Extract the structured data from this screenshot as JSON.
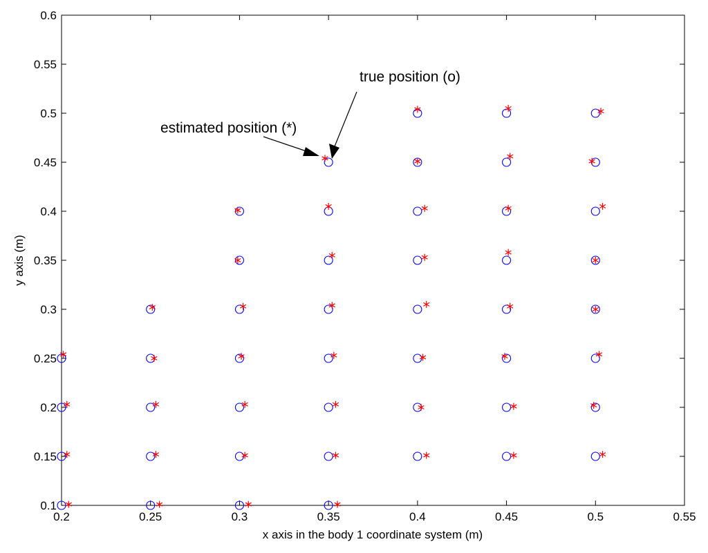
{
  "chart_data": {
    "type": "scatter",
    "title": "",
    "xlabel": "x axis in the body 1 coordinate system (m)",
    "ylabel": "y axis (m)",
    "xlim": [
      0.2,
      0.55
    ],
    "ylim": [
      0.1,
      0.6
    ],
    "xticks": [
      "0.2",
      "0.25",
      "0.3",
      "0.35",
      "0.4",
      "0.45",
      "0.5",
      "0.55"
    ],
    "yticks": [
      "0.1",
      "0.15",
      "0.2",
      "0.25",
      "0.3",
      "0.35",
      "0.4",
      "0.45",
      "0.5",
      "0.55",
      "0.6"
    ],
    "grid": false,
    "series": [
      {
        "marker": "circle",
        "color": "#0000ff",
        "points": [
          [
            0.2,
            0.1
          ],
          [
            0.2,
            0.15
          ],
          [
            0.2,
            0.2
          ],
          [
            0.2,
            0.25
          ],
          [
            0.25,
            0.1
          ],
          [
            0.25,
            0.15
          ],
          [
            0.25,
            0.2
          ],
          [
            0.25,
            0.25
          ],
          [
            0.25,
            0.3
          ],
          [
            0.3,
            0.1
          ],
          [
            0.3,
            0.15
          ],
          [
            0.3,
            0.2
          ],
          [
            0.3,
            0.25
          ],
          [
            0.3,
            0.3
          ],
          [
            0.3,
            0.35
          ],
          [
            0.3,
            0.4
          ],
          [
            0.35,
            0.1
          ],
          [
            0.35,
            0.15
          ],
          [
            0.35,
            0.2
          ],
          [
            0.35,
            0.25
          ],
          [
            0.35,
            0.3
          ],
          [
            0.35,
            0.35
          ],
          [
            0.35,
            0.4
          ],
          [
            0.35,
            0.45
          ],
          [
            0.4,
            0.15
          ],
          [
            0.4,
            0.2
          ],
          [
            0.4,
            0.25
          ],
          [
            0.4,
            0.3
          ],
          [
            0.4,
            0.35
          ],
          [
            0.4,
            0.4
          ],
          [
            0.4,
            0.45
          ],
          [
            0.4,
            0.5
          ],
          [
            0.45,
            0.15
          ],
          [
            0.45,
            0.2
          ],
          [
            0.45,
            0.25
          ],
          [
            0.45,
            0.3
          ],
          [
            0.45,
            0.35
          ],
          [
            0.45,
            0.4
          ],
          [
            0.45,
            0.45
          ],
          [
            0.45,
            0.5
          ],
          [
            0.5,
            0.15
          ],
          [
            0.5,
            0.2
          ],
          [
            0.5,
            0.25
          ],
          [
            0.5,
            0.3
          ],
          [
            0.5,
            0.35
          ],
          [
            0.5,
            0.4
          ],
          [
            0.5,
            0.45
          ],
          [
            0.5,
            0.5
          ]
        ]
      },
      {
        "marker": "asterisk",
        "color": "#ff0000",
        "points": [
          [
            0.204,
            0.101
          ],
          [
            0.203,
            0.152
          ],
          [
            0.203,
            0.203
          ],
          [
            0.201,
            0.254
          ],
          [
            0.255,
            0.101
          ],
          [
            0.253,
            0.152
          ],
          [
            0.253,
            0.203
          ],
          [
            0.252,
            0.25
          ],
          [
            0.251,
            0.302
          ],
          [
            0.305,
            0.101
          ],
          [
            0.303,
            0.151
          ],
          [
            0.303,
            0.203
          ],
          [
            0.301,
            0.252
          ],
          [
            0.302,
            0.303
          ],
          [
            0.299,
            0.35
          ],
          [
            0.299,
            0.401
          ],
          [
            0.355,
            0.101
          ],
          [
            0.354,
            0.151
          ],
          [
            0.354,
            0.203
          ],
          [
            0.353,
            0.253
          ],
          [
            0.352,
            0.304
          ],
          [
            0.352,
            0.355
          ],
          [
            0.35,
            0.405
          ],
          [
            0.348,
            0.454
          ],
          [
            0.405,
            0.151
          ],
          [
            0.402,
            0.2
          ],
          [
            0.403,
            0.251
          ],
          [
            0.405,
            0.305
          ],
          [
            0.404,
            0.353
          ],
          [
            0.404,
            0.403
          ],
          [
            0.4,
            0.451
          ],
          [
            0.4,
            0.504
          ],
          [
            0.454,
            0.151
          ],
          [
            0.454,
            0.201
          ],
          [
            0.449,
            0.252
          ],
          [
            0.452,
            0.303
          ],
          [
            0.451,
            0.358
          ],
          [
            0.451,
            0.403
          ],
          [
            0.452,
            0.456
          ],
          [
            0.451,
            0.505
          ],
          [
            0.504,
            0.152
          ],
          [
            0.499,
            0.202
          ],
          [
            0.502,
            0.254
          ],
          [
            0.5,
            0.3
          ],
          [
            0.5,
            0.35
          ],
          [
            0.504,
            0.405
          ],
          [
            0.498,
            0.451
          ],
          [
            0.503,
            0.502
          ]
        ]
      }
    ],
    "annotations": [
      {
        "text": "true position (o)",
        "target": [
          0.35,
          0.45
        ]
      },
      {
        "text": "estimated position (*)",
        "target": [
          0.348,
          0.454
        ]
      }
    ]
  }
}
